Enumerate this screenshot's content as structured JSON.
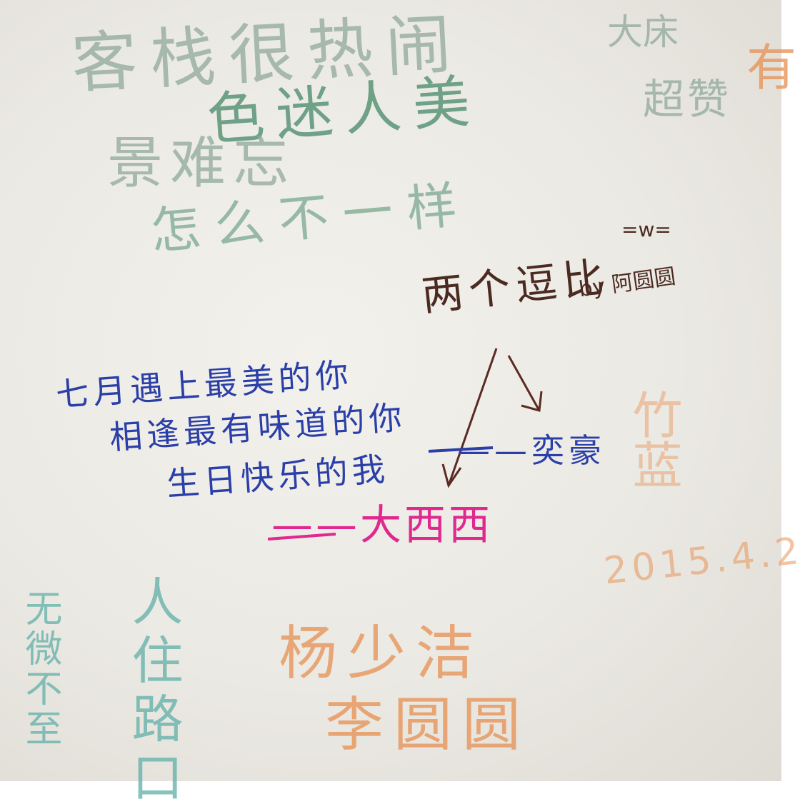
{
  "top_faded": {
    "row1": "客栈很热闹",
    "row2": "色迷人美",
    "row3": "景难忘",
    "row4": "怎么不一样",
    "corner1": "大床",
    "corner2": "超赞",
    "right_edge": "有"
  },
  "middle_note": {
    "line1": "两个逗比",
    "face": "=w=",
    "byline": "by 阿圆圆"
  },
  "blue_poem": {
    "line1": "七月遇上最美的你",
    "line2": "相逢最有味道的你",
    "line3": "生日快乐的我",
    "signature": "——奕豪"
  },
  "pink_signature": "——大西西",
  "orange_block": {
    "names1": "杨少洁",
    "names2": "李圆圆",
    "date": "2015.4.2",
    "right_char": "竹蓝"
  },
  "left_bottom": {
    "col1": "无微不至",
    "col2": "人住路口"
  },
  "colors": {
    "blue_ink": "#2b3fa8",
    "pink_ink": "#e0288f",
    "brown_ink": "#4b2a22",
    "orange_ink": "#e8955a",
    "green_ink": "#4f8f6e",
    "teal_ink": "#5fb0a8"
  }
}
